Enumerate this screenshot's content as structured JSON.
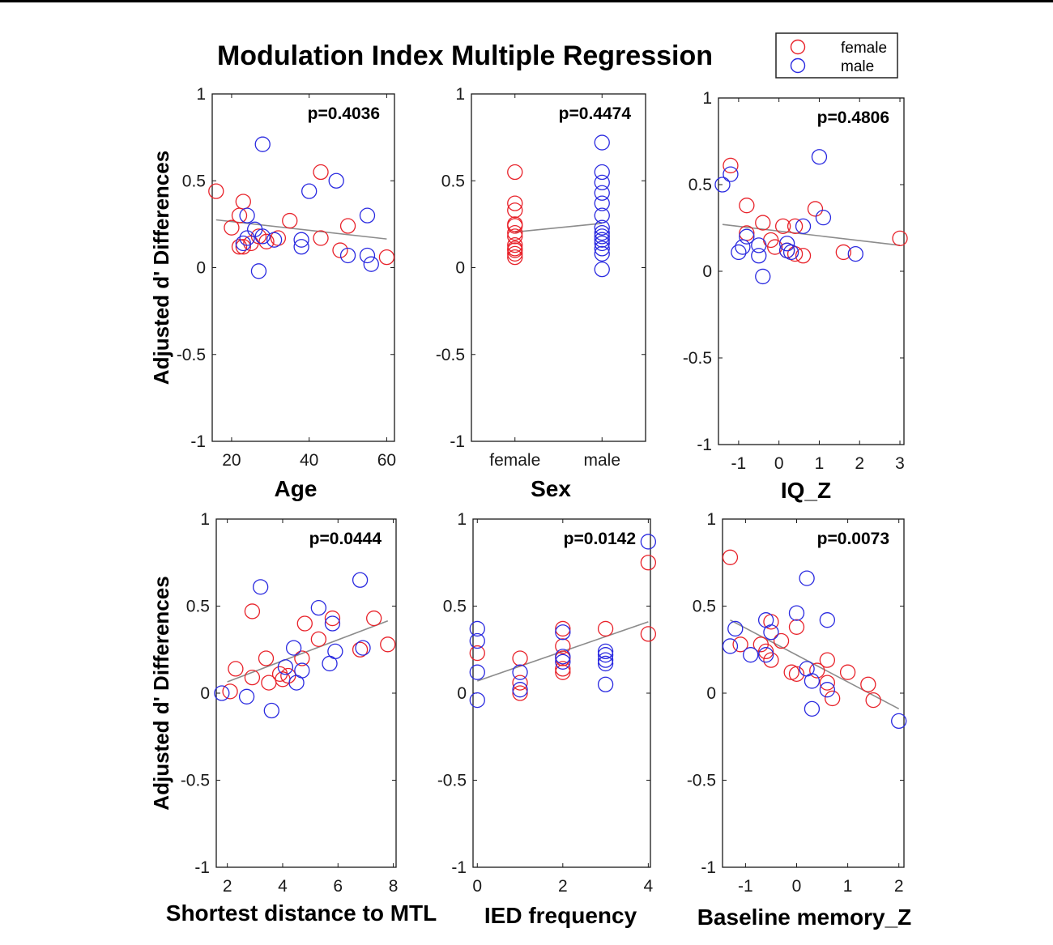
{
  "figure": {
    "title": "Modulation Index Multiple Regression",
    "colors": {
      "female": "#e8222a",
      "male": "#2a2ae0",
      "fit": "#8c8c8c"
    }
  },
  "legend": {
    "entries": [
      "female",
      "male"
    ]
  },
  "chart_data": [
    {
      "type": "scatter",
      "xlabel": "Age",
      "ylabel": "Adjusted d' Differences",
      "p_value": "p=0.4036",
      "xlim": [
        15,
        62
      ],
      "ylim": [
        -1,
        1
      ],
      "x_ticks": [
        20,
        40,
        60
      ],
      "x_tick_labels": [
        "20",
        "40",
        "60"
      ],
      "y_ticks": [
        -1,
        -0.5,
        0,
        0.5,
        1
      ],
      "y_tick_labels": [
        "-1",
        "-0.5",
        "0",
        "0.5",
        "1"
      ],
      "fit_line": [
        [
          16,
          0.275
        ],
        [
          60,
          0.165
        ]
      ],
      "series": [
        {
          "name": "female",
          "points": [
            [
              16,
              0.44
            ],
            [
              20,
              0.23
            ],
            [
              22,
              0.3
            ],
            [
              23,
              0.38
            ],
            [
              22,
              0.12
            ],
            [
              23,
              0.12
            ],
            [
              25,
              0.14
            ],
            [
              27,
              0.18
            ],
            [
              29,
              0.15
            ],
            [
              32,
              0.17
            ],
            [
              35,
              0.27
            ],
            [
              43,
              0.55
            ],
            [
              43,
              0.17
            ],
            [
              48,
              0.1
            ],
            [
              50,
              0.24
            ],
            [
              60,
              0.06
            ]
          ]
        },
        {
          "name": "male",
          "points": [
            [
              28,
              0.71
            ],
            [
              24,
              0.3
            ],
            [
              24,
              0.17
            ],
            [
              23,
              0.14
            ],
            [
              26,
              0.22
            ],
            [
              28,
              0.18
            ],
            [
              31,
              0.16
            ],
            [
              27,
              -0.02
            ],
            [
              38,
              0.16
            ],
            [
              38,
              0.12
            ],
            [
              40,
              0.44
            ],
            [
              47,
              0.5
            ],
            [
              50,
              0.07
            ],
            [
              55,
              0.3
            ],
            [
              55,
              0.07
            ],
            [
              56,
              0.02
            ]
          ]
        }
      ]
    },
    {
      "type": "scatter",
      "xlabel": "Sex",
      "p_value": "p=0.4474",
      "xlim": [
        -0.5,
        1.5
      ],
      "ylim": [
        -1,
        1
      ],
      "x_ticks": [
        0,
        1
      ],
      "x_tick_labels": [
        "female",
        "male"
      ],
      "y_ticks": [
        -1,
        -0.5,
        0,
        0.5,
        1
      ],
      "y_tick_labels": [
        "-1",
        "-0.5",
        "0",
        "0.5",
        "1"
      ],
      "fit_line": [
        [
          0,
          0.205
        ],
        [
          1,
          0.255
        ]
      ],
      "series": [
        {
          "name": "female",
          "points": [
            [
              0,
              0.55
            ],
            [
              0,
              0.37
            ],
            [
              0,
              0.33
            ],
            [
              0,
              0.25
            ],
            [
              0,
              0.24
            ],
            [
              0,
              0.2
            ],
            [
              0,
              0.18
            ],
            [
              0,
              0.13
            ],
            [
              0,
              0.11
            ],
            [
              0,
              0.1
            ],
            [
              0,
              0.08
            ],
            [
              0,
              0.06
            ]
          ]
        },
        {
          "name": "male",
          "points": [
            [
              1,
              0.72
            ],
            [
              1,
              0.55
            ],
            [
              1,
              0.49
            ],
            [
              1,
              0.43
            ],
            [
              1,
              0.37
            ],
            [
              1,
              0.3
            ],
            [
              1,
              0.23
            ],
            [
              1,
              0.2
            ],
            [
              1,
              0.18
            ],
            [
              1,
              0.16
            ],
            [
              1,
              0.14
            ],
            [
              1,
              0.11
            ],
            [
              1,
              0.08
            ],
            [
              1,
              -0.01
            ]
          ]
        }
      ]
    },
    {
      "type": "scatter",
      "xlabel": "IQ_Z",
      "p_value": "p=0.4806",
      "xlim": [
        -1.5,
        3.1
      ],
      "ylim": [
        -1,
        1
      ],
      "x_ticks": [
        -1,
        0,
        1,
        2,
        3
      ],
      "x_tick_labels": [
        "-1",
        "0",
        "1",
        "2",
        "3"
      ],
      "y_ticks": [
        -1,
        -0.5,
        0,
        0.5,
        1
      ],
      "y_tick_labels": [
        "-1",
        "-0.5",
        "0",
        "0.5",
        "1"
      ],
      "fit_line": [
        [
          -1.4,
          0.27
        ],
        [
          3.0,
          0.15
        ]
      ],
      "series": [
        {
          "name": "female",
          "points": [
            [
              -1.2,
              0.61
            ],
            [
              -0.8,
              0.38
            ],
            [
              -0.8,
              0.22
            ],
            [
              -0.4,
              0.28
            ],
            [
              -0.2,
              0.18
            ],
            [
              0.1,
              0.26
            ],
            [
              -0.1,
              0.14
            ],
            [
              0.2,
              0.12
            ],
            [
              0.4,
              0.1
            ],
            [
              0.6,
              0.09
            ],
            [
              0.4,
              0.26
            ],
            [
              0.9,
              0.36
            ],
            [
              1.6,
              0.11
            ],
            [
              3.0,
              0.19
            ]
          ]
        },
        {
          "name": "male",
          "points": [
            [
              -1.4,
              0.5
            ],
            [
              -1.2,
              0.56
            ],
            [
              -1.0,
              0.11
            ],
            [
              -0.9,
              0.14
            ],
            [
              -0.8,
              0.2
            ],
            [
              -0.5,
              0.15
            ],
            [
              -0.5,
              0.09
            ],
            [
              -0.4,
              -0.03
            ],
            [
              0.2,
              0.16
            ],
            [
              0.2,
              0.12
            ],
            [
              0.3,
              0.11
            ],
            [
              0.6,
              0.26
            ],
            [
              1.0,
              0.66
            ],
            [
              1.1,
              0.31
            ],
            [
              1.9,
              0.1
            ]
          ]
        }
      ]
    },
    {
      "type": "scatter",
      "xlabel": "Shortest distance to MTL",
      "ylabel": "Adjusted d' Differences",
      "p_value": "p=0.0444",
      "xlim": [
        1.6,
        8.1
      ],
      "ylim": [
        -1,
        1
      ],
      "x_ticks": [
        2,
        4,
        6,
        8
      ],
      "x_tick_labels": [
        "2",
        "4",
        "6",
        "8"
      ],
      "y_ticks": [
        -1,
        -0.5,
        0,
        0.5,
        1
      ],
      "y_tick_labels": [
        "-1",
        "-0.5",
        "0",
        "0.5",
        "1"
      ],
      "fit_line": [
        [
          2.0,
          0.065
        ],
        [
          7.8,
          0.415
        ]
      ],
      "series": [
        {
          "name": "female",
          "points": [
            [
              2.1,
              0.01
            ],
            [
              2.3,
              0.14
            ],
            [
              2.9,
              0.47
            ],
            [
              2.9,
              0.09
            ],
            [
              3.4,
              0.2
            ],
            [
              3.5,
              0.06
            ],
            [
              3.9,
              0.11
            ],
            [
              4.0,
              0.08
            ],
            [
              4.2,
              0.1
            ],
            [
              4.7,
              0.2
            ],
            [
              4.8,
              0.4
            ],
            [
              5.3,
              0.31
            ],
            [
              5.8,
              0.43
            ],
            [
              6.8,
              0.25
            ],
            [
              7.3,
              0.43
            ],
            [
              7.8,
              0.28
            ]
          ]
        },
        {
          "name": "male",
          "points": [
            [
              1.8,
              0.0
            ],
            [
              2.7,
              -0.02
            ],
            [
              3.2,
              0.61
            ],
            [
              3.6,
              -0.1
            ],
            [
              4.1,
              0.15
            ],
            [
              4.4,
              0.26
            ],
            [
              4.5,
              0.06
            ],
            [
              4.7,
              0.13
            ],
            [
              5.3,
              0.49
            ],
            [
              5.7,
              0.17
            ],
            [
              5.8,
              0.4
            ],
            [
              5.9,
              0.24
            ],
            [
              6.8,
              0.65
            ],
            [
              6.9,
              0.26
            ]
          ]
        }
      ]
    },
    {
      "type": "scatter",
      "xlabel": "IED frequency",
      "p_value": "p=0.0142",
      "xlim": [
        -0.1,
        4.05
      ],
      "ylim": [
        -1,
        1
      ],
      "x_ticks": [
        0,
        2,
        4
      ],
      "x_tick_labels": [
        "0",
        "2",
        "4"
      ],
      "y_ticks": [
        -1,
        -0.5,
        0,
        0.5,
        1
      ],
      "y_tick_labels": [
        "-1",
        "-0.5",
        "0",
        "0.5",
        "1"
      ],
      "fit_line": [
        [
          0,
          0.07
        ],
        [
          4,
          0.41
        ]
      ],
      "series": [
        {
          "name": "female",
          "points": [
            [
              0,
              0.23
            ],
            [
              1,
              0.2
            ],
            [
              1,
              0.06
            ],
            [
              1,
              0.0
            ],
            [
              2,
              0.37
            ],
            [
              2,
              0.27
            ],
            [
              2,
              0.2
            ],
            [
              2,
              0.14
            ],
            [
              2,
              0.12
            ],
            [
              3,
              0.37
            ],
            [
              4,
              0.75
            ],
            [
              4,
              0.34
            ]
          ]
        },
        {
          "name": "male",
          "points": [
            [
              0,
              0.37
            ],
            [
              0,
              0.3
            ],
            [
              0,
              0.12
            ],
            [
              0,
              -0.04
            ],
            [
              1,
              0.12
            ],
            [
              1,
              0.02
            ],
            [
              2,
              0.35
            ],
            [
              2,
              0.21
            ],
            [
              2,
              0.18
            ],
            [
              3,
              0.24
            ],
            [
              3,
              0.22
            ],
            [
              3,
              0.19
            ],
            [
              3,
              0.17
            ],
            [
              3,
              0.05
            ],
            [
              4,
              0.87
            ]
          ]
        }
      ]
    },
    {
      "type": "scatter",
      "xlabel": "Baseline memory_Z",
      "p_value": "p=0.0073",
      "xlim": [
        -1.45,
        2.1
      ],
      "ylim": [
        -1,
        1
      ],
      "x_ticks": [
        -1,
        0,
        1,
        2
      ],
      "x_tick_labels": [
        "-1",
        "0",
        "1",
        "2"
      ],
      "y_ticks": [
        -1,
        -0.5,
        0,
        0.5,
        1
      ],
      "y_tick_labels": [
        "-1",
        "-0.5",
        "0",
        "0.5",
        "1"
      ],
      "fit_line": [
        [
          -1.3,
          0.42
        ],
        [
          2.0,
          -0.09
        ]
      ],
      "series": [
        {
          "name": "female",
          "points": [
            [
              -1.3,
              0.78
            ],
            [
              -1.1,
              0.28
            ],
            [
              -0.7,
              0.28
            ],
            [
              -0.6,
              0.24
            ],
            [
              -0.5,
              0.41
            ],
            [
              -0.5,
              0.19
            ],
            [
              -0.3,
              0.3
            ],
            [
              0.0,
              0.38
            ],
            [
              -0.1,
              0.12
            ],
            [
              0.0,
              0.11
            ],
            [
              0.4,
              0.13
            ],
            [
              0.6,
              0.19
            ],
            [
              0.6,
              0.06
            ],
            [
              0.7,
              -0.03
            ],
            [
              1.0,
              0.12
            ],
            [
              1.4,
              0.05
            ],
            [
              1.5,
              -0.04
            ]
          ]
        },
        {
          "name": "male",
          "points": [
            [
              -1.3,
              0.27
            ],
            [
              -1.2,
              0.37
            ],
            [
              -0.9,
              0.22
            ],
            [
              -0.6,
              0.42
            ],
            [
              -0.6,
              0.22
            ],
            [
              -0.5,
              0.35
            ],
            [
              0.0,
              0.46
            ],
            [
              0.2,
              0.66
            ],
            [
              0.2,
              0.14
            ],
            [
              0.3,
              0.07
            ],
            [
              0.3,
              -0.09
            ],
            [
              0.6,
              0.02
            ],
            [
              0.6,
              0.42
            ],
            [
              2.0,
              -0.16
            ]
          ]
        }
      ]
    }
  ]
}
